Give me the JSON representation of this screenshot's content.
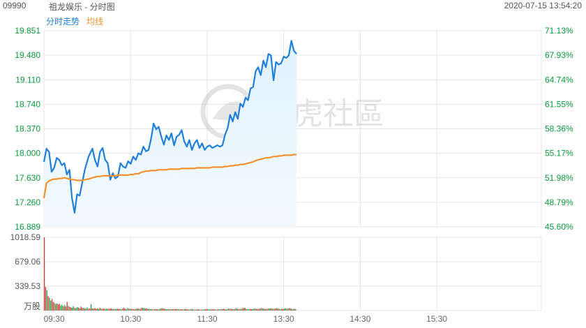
{
  "header": {
    "code": "09990",
    "name": "祖龙娱乐 - 分时图",
    "timestamp": "2020-07-15 13:54:20"
  },
  "legend": {
    "series_a_label": "分时走势",
    "series_b_label": "均线",
    "series_a_color": "#1f7fdc",
    "series_b_color": "#f5902c"
  },
  "watermark": {
    "text": "老虎社區"
  },
  "colors": {
    "up": "#e6261f",
    "down": "#0a9a3c",
    "price_label": "#0a9a3c",
    "grid": "#e6e6e6",
    "area_fill_top": "#dff1fd",
    "area_fill_bottom": "#f3faff"
  },
  "chart_data": [
    {
      "type": "line",
      "title": "",
      "x_ticks": [
        "09:30",
        "10:30",
        "11:30",
        "13:30",
        "14:30",
        "15:30"
      ],
      "y_left_ticks": [
        "19.851",
        "19.480",
        "19.110",
        "18.740",
        "18.370",
        "18.000",
        "17.630",
        "17.260",
        "16.889"
      ],
      "y_right_ticks": [
        "71.13%",
        "67.93%",
        "64.74%",
        "61.55%",
        "58.36%",
        "55.17%",
        "51.98%",
        "48.79%",
        "45.60%"
      ],
      "ylim": [
        16.889,
        19.851
      ],
      "grid": true,
      "series": [
        {
          "name": "分时走势",
          "t": [
            0,
            2,
            4,
            6,
            8,
            10,
            12,
            14,
            16,
            18,
            20,
            22,
            24,
            26,
            28,
            30,
            32,
            35,
            38,
            40,
            42,
            44,
            46,
            48,
            50,
            52,
            54,
            56,
            58,
            60,
            62,
            64,
            66,
            68,
            70,
            72,
            74,
            76,
            78,
            80,
            82,
            84,
            86,
            88,
            90,
            92,
            94,
            96,
            98,
            100,
            102,
            104,
            106,
            108,
            110,
            112,
            114,
            116,
            118,
            120,
            122,
            124,
            126,
            128,
            130,
            132,
            134,
            136,
            138,
            140,
            142,
            144,
            146,
            148,
            150,
            152,
            154,
            156,
            158,
            160,
            162,
            164,
            166,
            168,
            170,
            172,
            174,
            176,
            178,
            180,
            182,
            184,
            186,
            188,
            190,
            192,
            194,
            196,
            198
          ],
          "values": [
            17.87,
            18.07,
            18.02,
            17.72,
            17.78,
            17.93,
            17.9,
            17.82,
            17.85,
            17.68,
            17.75,
            17.32,
            17.1,
            17.38,
            17.36,
            17.55,
            17.75,
            17.95,
            18.07,
            17.9,
            17.8,
            18.02,
            18.08,
            17.9,
            17.85,
            17.6,
            17.7,
            17.62,
            17.65,
            17.85,
            17.8,
            17.78,
            17.88,
            17.84,
            17.95,
            17.9,
            18.0,
            17.98,
            18.1,
            18.03,
            18.05,
            18.22,
            18.45,
            18.36,
            18.4,
            18.25,
            18.13,
            18.27,
            18.2,
            18.3,
            18.12,
            18.25,
            18.28,
            18.35,
            18.18,
            18.1,
            18.2,
            18.05,
            18.15,
            18.2,
            18.08,
            18.15,
            18.05,
            18.1,
            18.12,
            18.08,
            18.1,
            18.12,
            18.1,
            18.12,
            18.28,
            18.38,
            18.58,
            18.48,
            18.62,
            18.52,
            18.75,
            18.7,
            18.84,
            18.8,
            18.98,
            19.0,
            19.24,
            19.3,
            19.18,
            19.4,
            19.3,
            19.5,
            19.48,
            19.1,
            19.38,
            19.34,
            19.36,
            19.46,
            19.44,
            19.48,
            19.7,
            19.55,
            19.5
          ]
        },
        {
          "name": "均线",
          "t": [
            0,
            2,
            4,
            6,
            8,
            10,
            12,
            14,
            16,
            18,
            20,
            22,
            24,
            26,
            28,
            30,
            32,
            35,
            38,
            40,
            42,
            44,
            46,
            48,
            50,
            52,
            54,
            56,
            58,
            60,
            62,
            64,
            66,
            68,
            70,
            72,
            74,
            76,
            78,
            80,
            82,
            84,
            86,
            88,
            90,
            92,
            94,
            96,
            98,
            100,
            102,
            104,
            106,
            108,
            110,
            112,
            114,
            116,
            118,
            120,
            122,
            124,
            126,
            128,
            130,
            132,
            134,
            136,
            138,
            140,
            142,
            144,
            146,
            148,
            150,
            152,
            154,
            156,
            158,
            160,
            162,
            164,
            166,
            168,
            170,
            172,
            174,
            176,
            178,
            180,
            182,
            184,
            186,
            188,
            190,
            192,
            194,
            196,
            198
          ],
          "values": [
            17.32,
            17.55,
            17.58,
            17.6,
            17.61,
            17.61,
            17.62,
            17.62,
            17.63,
            17.62,
            17.61,
            17.6,
            17.6,
            17.59,
            17.59,
            17.59,
            17.6,
            17.61,
            17.63,
            17.64,
            17.65,
            17.65,
            17.66,
            17.66,
            17.66,
            17.66,
            17.66,
            17.66,
            17.67,
            17.67,
            17.67,
            17.67,
            17.67,
            17.68,
            17.68,
            17.69,
            17.69,
            17.71,
            17.72,
            17.73,
            17.73,
            17.74,
            17.74,
            17.74,
            17.75,
            17.75,
            17.75,
            17.75,
            17.76,
            17.76,
            17.76,
            17.76,
            17.76,
            17.77,
            17.77,
            17.77,
            17.77,
            17.77,
            17.77,
            17.78,
            17.78,
            17.78,
            17.78,
            17.78,
            17.78,
            17.79,
            17.79,
            17.79,
            17.79,
            17.79,
            17.8,
            17.8,
            17.81,
            17.81,
            17.82,
            17.82,
            17.83,
            17.83,
            17.84,
            17.85,
            17.86,
            17.87,
            17.89,
            17.9,
            17.91,
            17.92,
            17.93,
            17.93,
            17.94,
            17.95,
            17.95,
            17.96,
            17.96,
            17.97,
            17.97,
            17.97,
            17.97,
            17.98,
            17.98
          ]
        }
      ]
    },
    {
      "type": "bar",
      "title": "",
      "y_ticks": [
        "1018.59",
        "679.06",
        "339.53"
      ],
      "ylabel": "万股",
      "ylim": [
        0,
        1018.59
      ],
      "volumes": [
        1018,
        330,
        280,
        200,
        180,
        140,
        160,
        120,
        110,
        90,
        100,
        85,
        95,
        70,
        80,
        60,
        75,
        55,
        120,
        65,
        50,
        45,
        40,
        60,
        38,
        35,
        48,
        42,
        30,
        55,
        40,
        35,
        30,
        28,
        45,
        25,
        32,
        90,
        28,
        30,
        35,
        25,
        30,
        22,
        40,
        28,
        25,
        30,
        20,
        26,
        24,
        22,
        28,
        30,
        25,
        20,
        22,
        26,
        24,
        20,
        22,
        18,
        30,
        40,
        25,
        22,
        35,
        28,
        20,
        24,
        22,
        18,
        20,
        26,
        30,
        25,
        22,
        40,
        38,
        35,
        28,
        30,
        24,
        22,
        18,
        20,
        15,
        18,
        22,
        20,
        16,
        18,
        28,
        35,
        30,
        25,
        22,
        18,
        20,
        20,
        16,
        22,
        18,
        20,
        24,
        20,
        18,
        16,
        20,
        18,
        15,
        20,
        22,
        18,
        16,
        14,
        18,
        20,
        16,
        14,
        12,
        16,
        18,
        14,
        12,
        16,
        14,
        18,
        20,
        22,
        18,
        16,
        14,
        18,
        20,
        16,
        14,
        15,
        18,
        16,
        20,
        22,
        24,
        18,
        16,
        20,
        28,
        25,
        22,
        20,
        18,
        22,
        35,
        24,
        20,
        18,
        26,
        30,
        40,
        35,
        22,
        20,
        18,
        24,
        20,
        22,
        26,
        28,
        22,
        20,
        24,
        30,
        35,
        28,
        25,
        22,
        20,
        26,
        30,
        32,
        28,
        25,
        22,
        30,
        35,
        28,
        24,
        20,
        26,
        22,
        30,
        32,
        25,
        28,
        35,
        30,
        22,
        20,
        26,
        18
      ],
      "colors": [
        "up",
        "up",
        "down",
        "up",
        "down",
        "down",
        "up",
        "up",
        "down",
        "up",
        "down",
        "up",
        "up",
        "down",
        "down",
        "up",
        "down",
        "up",
        "up",
        "down",
        "up",
        "up",
        "down",
        "down",
        "up",
        "down",
        "down",
        "up",
        "down",
        "up",
        "up",
        "down",
        "up",
        "down",
        "down",
        "up",
        "up",
        "down",
        "up",
        "down",
        "up",
        "up",
        "down",
        "down",
        "up",
        "down",
        "up",
        "up",
        "down",
        "down",
        "up",
        "down",
        "up",
        "up",
        "down",
        "up",
        "down",
        "down",
        "up",
        "up",
        "down",
        "up",
        "down",
        "up",
        "up",
        "down",
        "down",
        "up",
        "down",
        "up",
        "down",
        "up",
        "up",
        "down",
        "up",
        "down",
        "up",
        "up",
        "down",
        "down",
        "up",
        "up",
        "down",
        "down",
        "up",
        "down",
        "up",
        "down",
        "up",
        "up",
        "down",
        "down",
        "up",
        "down",
        "up",
        "up",
        "down",
        "down",
        "up",
        "down",
        "up",
        "down",
        "up",
        "up",
        "down",
        "up",
        "down",
        "down",
        "up",
        "up",
        "down",
        "up",
        "down",
        "up",
        "up",
        "down",
        "down",
        "up",
        "down",
        "up",
        "down",
        "up",
        "down",
        "up",
        "up",
        "down",
        "up",
        "down",
        "up",
        "up",
        "down",
        "down",
        "up",
        "down",
        "up",
        "up",
        "down",
        "down",
        "up",
        "down",
        "up",
        "down",
        "up",
        "up",
        "down",
        "down",
        "up",
        "down",
        "up",
        "up",
        "down",
        "up",
        "down",
        "up",
        "down",
        "up",
        "down",
        "up",
        "up",
        "down",
        "up",
        "down",
        "down",
        "up",
        "up",
        "down",
        "down",
        "up",
        "down",
        "up",
        "up",
        "down",
        "up",
        "down",
        "up",
        "down",
        "up",
        "up",
        "down",
        "down",
        "up",
        "down",
        "up",
        "up",
        "down",
        "up",
        "down",
        "down",
        "up",
        "up",
        "down",
        "down",
        "up",
        "down",
        "up",
        "down",
        "up",
        "down",
        "up",
        "down"
      ]
    }
  ]
}
